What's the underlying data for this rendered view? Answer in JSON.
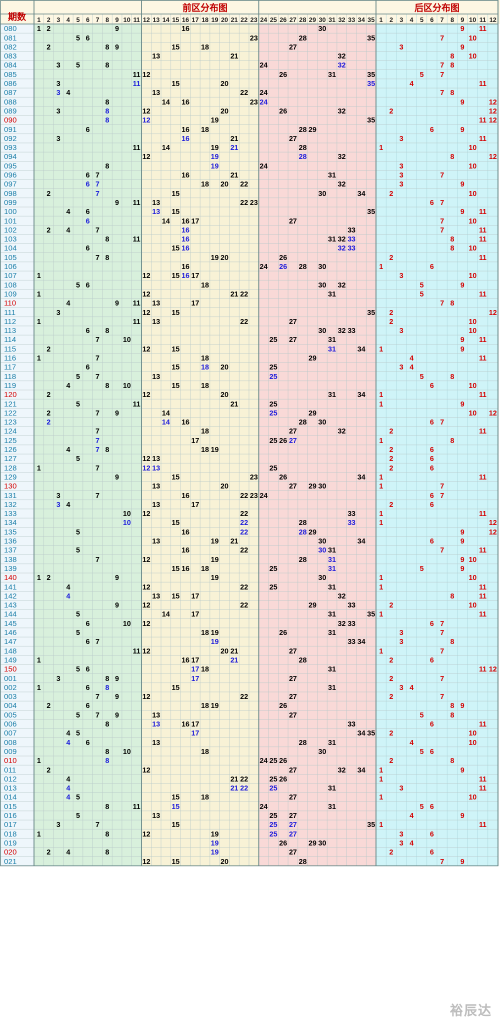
{
  "header": {
    "period_label": "期数",
    "front_title": "前区分布图",
    "back_title": "后区分布图"
  },
  "watermark": "裕辰达",
  "colors": {
    "period_normal": "#1a7ea8",
    "period_highlight": "#d40000",
    "front_ball": "#000000",
    "front_repeat": "#1a1adb",
    "back_ball": "#d40000",
    "zone1_bg": "#d8f0dc",
    "zone2_bg": "#f8f2d6",
    "zone3_bg": "#f9d9d7",
    "back_bg": "#cff4f8"
  },
  "front_columns": [
    "1",
    "2",
    "3",
    "4",
    "5",
    "6",
    "7",
    "8",
    "9",
    "10",
    "11",
    "12",
    "13",
    "14",
    "15",
    "16",
    "17",
    "18",
    "19",
    "20",
    "21",
    "22",
    "23",
    "24",
    "25",
    "26",
    "27",
    "28",
    "29",
    "30",
    "31",
    "32",
    "33",
    "34",
    "35"
  ],
  "back_columns": [
    "1",
    "2",
    "3",
    "4",
    "5",
    "6",
    "7",
    "8",
    "9",
    "10",
    "11",
    "12"
  ],
  "draws": [
    {
      "p": "080",
      "f": [
        1,
        2,
        9,
        16,
        30
      ],
      "b": [
        9,
        11
      ]
    },
    {
      "p": "081",
      "f": [
        5,
        6,
        23,
        28,
        35
      ],
      "b": [
        7,
        10
      ]
    },
    {
      "p": "082",
      "f": [
        2,
        8,
        9,
        15,
        18,
        27
      ],
      "b": [
        3,
        9
      ]
    },
    {
      "p": "083",
      "f": [
        13,
        21,
        32
      ],
      "b": [
        8,
        10
      ]
    },
    {
      "p": "084",
      "f": [
        3,
        5,
        8,
        24,
        32
      ],
      "b": [
        7,
        8
      ]
    },
    {
      "p": "085",
      "f": [
        11,
        12,
        26,
        31,
        35
      ],
      "b": [
        5,
        7
      ]
    },
    {
      "p": "086",
      "f": [
        3,
        11,
        15,
        20,
        35
      ],
      "b": [
        4,
        11
      ]
    },
    {
      "p": "087",
      "f": [
        3,
        4,
        13,
        22,
        24
      ],
      "b": [
        7,
        8
      ]
    },
    {
      "p": "088",
      "f": [
        8,
        14,
        16,
        23,
        24
      ],
      "b": [
        9,
        12
      ]
    },
    {
      "p": "089",
      "f": [
        3,
        8,
        12,
        20,
        26,
        32
      ],
      "b": [
        2,
        12
      ]
    },
    {
      "p": "090",
      "f": [
        8,
        12,
        19,
        35
      ],
      "b": [
        11,
        12
      ]
    },
    {
      "p": "091",
      "f": [
        6,
        16,
        18,
        28,
        29
      ],
      "b": [
        6,
        9
      ]
    },
    {
      "p": "092",
      "f": [
        3,
        16,
        21,
        27
      ],
      "b": [
        3,
        11
      ]
    },
    {
      "p": "093",
      "f": [
        11,
        14,
        19,
        21,
        28
      ],
      "b": [
        1,
        10
      ]
    },
    {
      "p": "094",
      "f": [
        12,
        19,
        28,
        32
      ],
      "b": [
        8,
        12
      ]
    },
    {
      "p": "095",
      "f": [
        8,
        19,
        24
      ],
      "b": [
        3,
        10
      ]
    },
    {
      "p": "096",
      "f": [
        6,
        7,
        16,
        21,
        31
      ],
      "b": [
        3,
        7
      ]
    },
    {
      "p": "097",
      "f": [
        6,
        7,
        18,
        20,
        22,
        32
      ],
      "b": [
        3,
        9
      ]
    },
    {
      "p": "098",
      "f": [
        2,
        7,
        15,
        30,
        34
      ],
      "b": [
        2,
        10
      ]
    },
    {
      "p": "099",
      "f": [
        9,
        11,
        13,
        22,
        23
      ],
      "b": [
        6,
        7
      ]
    },
    {
      "p": "100",
      "f": [
        4,
        6,
        13,
        15,
        35
      ],
      "b": [
        9,
        11
      ]
    },
    {
      "p": "101",
      "f": [
        6,
        14,
        16,
        17,
        27
      ],
      "b": [
        7,
        10
      ]
    },
    {
      "p": "102",
      "f": [
        2,
        4,
        7,
        16,
        33
      ],
      "b": [
        7,
        11
      ]
    },
    {
      "p": "103",
      "f": [
        8,
        11,
        16,
        31,
        32,
        33
      ],
      "b": [
        8,
        11
      ]
    },
    {
      "p": "104",
      "f": [
        6,
        15,
        16,
        32,
        33
      ],
      "b": [
        8,
        10
      ]
    },
    {
      "p": "105",
      "f": [
        7,
        8,
        19,
        20,
        26
      ],
      "b": [
        2,
        11
      ]
    },
    {
      "p": "106",
      "f": [
        16,
        24,
        26,
        28,
        30
      ],
      "b": [
        1,
        6
      ]
    },
    {
      "p": "107",
      "f": [
        1,
        12,
        15,
        16,
        17
      ],
      "b": [
        3,
        10
      ]
    },
    {
      "p": "108",
      "f": [
        5,
        6,
        18,
        30,
        32
      ],
      "b": [
        5,
        9
      ]
    },
    {
      "p": "109",
      "f": [
        1,
        12,
        21,
        22,
        31
      ],
      "b": [
        5,
        11
      ]
    },
    {
      "p": "110",
      "f": [
        4,
        9,
        11,
        13,
        17
      ],
      "b": [
        7,
        8
      ]
    },
    {
      "p": "111",
      "f": [
        3,
        12,
        15,
        35
      ],
      "b": [
        2,
        12
      ]
    },
    {
      "p": "112",
      "f": [
        1,
        11,
        13,
        22,
        27
      ],
      "b": [
        2,
        10
      ]
    },
    {
      "p": "113",
      "f": [
        6,
        8,
        30,
        32,
        33
      ],
      "b": [
        3,
        10
      ]
    },
    {
      "p": "114",
      "f": [
        7,
        10,
        25,
        27,
        31
      ],
      "b": [
        9,
        11
      ]
    },
    {
      "p": "115",
      "f": [
        2,
        12,
        15,
        31,
        34
      ],
      "b": [
        1,
        9
      ]
    },
    {
      "p": "116",
      "f": [
        1,
        7,
        18,
        29
      ],
      "b": [
        4,
        11
      ]
    },
    {
      "p": "117",
      "f": [
        6,
        15,
        18,
        20,
        25
      ],
      "b": [
        3,
        4
      ]
    },
    {
      "p": "118",
      "f": [
        5,
        7,
        13,
        25
      ],
      "b": [
        5,
        8
      ]
    },
    {
      "p": "119",
      "f": [
        4,
        8,
        10,
        15,
        18
      ],
      "b": [
        6,
        10
      ]
    },
    {
      "p": "120",
      "f": [
        2,
        12,
        20,
        31,
        34
      ],
      "b": [
        1,
        11
      ]
    },
    {
      "p": "121",
      "f": [
        5,
        11,
        21,
        25
      ],
      "b": [
        1,
        9
      ]
    },
    {
      "p": "122",
      "f": [
        2,
        7,
        9,
        14,
        25,
        29
      ],
      "b": [
        10,
        12
      ]
    },
    {
      "p": "123",
      "f": [
        2,
        14,
        16,
        28,
        30
      ],
      "b": [
        6,
        7
      ]
    },
    {
      "p": "124",
      "f": [
        7,
        18,
        27,
        32
      ],
      "b": [
        2,
        11
      ]
    },
    {
      "p": "125",
      "f": [
        7,
        17,
        25,
        26,
        27
      ],
      "b": [
        1,
        8
      ]
    },
    {
      "p": "126",
      "f": [
        4,
        7,
        8,
        18,
        19
      ],
      "b": [
        2,
        6
      ]
    },
    {
      "p": "127",
      "f": [
        5,
        12,
        13
      ],
      "b": [
        2,
        6
      ]
    },
    {
      "p": "128",
      "f": [
        1,
        7,
        12,
        13,
        25
      ],
      "b": [
        2,
        6
      ]
    },
    {
      "p": "129",
      "f": [
        9,
        15,
        23,
        26,
        34
      ],
      "b": [
        1,
        11
      ]
    },
    {
      "p": "130",
      "f": [
        13,
        20,
        27,
        29,
        30
      ],
      "b": [
        1,
        7
      ]
    },
    {
      "p": "131",
      "f": [
        3,
        7,
        16,
        22,
        23,
        24
      ],
      "b": [
        6,
        7
      ]
    },
    {
      "p": "132",
      "f": [
        3,
        4,
        13,
        17
      ],
      "b": [
        2,
        6
      ]
    },
    {
      "p": "133",
      "f": [
        10,
        12,
        22,
        33
      ],
      "b": [
        1,
        11
      ]
    },
    {
      "p": "134",
      "f": [
        10,
        15,
        22,
        28,
        33
      ],
      "b": [
        1,
        12
      ]
    },
    {
      "p": "135",
      "f": [
        5,
        16,
        22,
        28,
        29
      ],
      "b": [
        9,
        12
      ]
    },
    {
      "p": "136",
      "f": [
        13,
        19,
        21,
        30,
        34
      ],
      "b": [
        6,
        9
      ]
    },
    {
      "p": "137",
      "f": [
        5,
        16,
        22,
        30,
        31
      ],
      "b": [
        7,
        11
      ]
    },
    {
      "p": "138",
      "f": [
        7,
        12,
        19,
        28,
        31
      ],
      "b": [
        9,
        10
      ]
    },
    {
      "p": "139",
      "f": [
        15,
        16,
        18,
        25,
        31
      ],
      "b": [
        5,
        9
      ]
    },
    {
      "p": "140",
      "f": [
        1,
        2,
        9,
        19,
        30
      ],
      "b": [
        1,
        10
      ]
    },
    {
      "p": "141",
      "f": [
        4,
        12,
        22,
        25,
        31
      ],
      "b": [
        1,
        11
      ]
    },
    {
      "p": "142",
      "f": [
        4,
        13,
        15,
        17,
        32
      ],
      "b": [
        8,
        11
      ]
    },
    {
      "p": "143",
      "f": [
        9,
        12,
        22,
        29,
        33
      ],
      "b": [
        2,
        10
      ]
    },
    {
      "p": "144",
      "f": [
        5,
        14,
        17,
        31,
        35
      ],
      "b": [
        1,
        11
      ]
    },
    {
      "p": "145",
      "f": [
        6,
        10,
        12,
        32,
        33
      ],
      "b": [
        6,
        7
      ]
    },
    {
      "p": "146",
      "f": [
        5,
        18,
        19,
        26,
        31
      ],
      "b": [
        3,
        7
      ]
    },
    {
      "p": "147",
      "f": [
        6,
        7,
        19,
        33,
        34
      ],
      "b": [
        3,
        8
      ]
    },
    {
      "p": "148",
      "f": [
        11,
        12,
        20,
        21,
        27
      ],
      "b": [
        1,
        7
      ]
    },
    {
      "p": "149",
      "f": [
        1,
        16,
        17,
        21,
        28
      ],
      "b": [
        2,
        6
      ]
    },
    {
      "p": "150",
      "f": [
        5,
        6,
        17,
        18,
        31
      ],
      "b": [
        11,
        12
      ]
    },
    {
      "p": "001",
      "f": [
        3,
        8,
        9,
        17,
        27
      ],
      "b": [
        2,
        7
      ]
    },
    {
      "p": "002",
      "f": [
        1,
        6,
        8,
        15,
        31
      ],
      "b": [
        3,
        4
      ]
    },
    {
      "p": "003",
      "f": [
        7,
        9,
        12,
        22,
        27
      ],
      "b": [
        2,
        7
      ]
    },
    {
      "p": "004",
      "f": [
        2,
        6,
        18,
        19,
        26
      ],
      "b": [
        8,
        9
      ]
    },
    {
      "p": "005",
      "f": [
        5,
        7,
        9,
        13,
        27
      ],
      "b": [
        5,
        8
      ]
    },
    {
      "p": "006",
      "f": [
        8,
        13,
        16,
        17,
        33
      ],
      "b": [
        6,
        11
      ]
    },
    {
      "p": "007",
      "f": [
        4,
        5,
        17,
        34,
        35
      ],
      "b": [
        2,
        10
      ]
    },
    {
      "p": "008",
      "f": [
        4,
        6,
        13,
        28,
        31
      ],
      "b": [
        4,
        10
      ]
    },
    {
      "p": "009",
      "f": [
        8,
        10,
        18,
        30
      ],
      "b": [
        5,
        6
      ]
    },
    {
      "p": "010",
      "f": [
        1,
        8,
        24,
        25,
        26
      ],
      "b": [
        2,
        8
      ]
    },
    {
      "p": "011",
      "f": [
        2,
        12,
        27,
        32,
        34
      ],
      "b": [
        1,
        9
      ]
    },
    {
      "p": "012",
      "f": [
        4,
        21,
        22,
        25,
        26
      ],
      "b": [
        1,
        11
      ]
    },
    {
      "p": "013",
      "f": [
        4,
        21,
        22,
        25,
        31
      ],
      "b": [
        3,
        11
      ]
    },
    {
      "p": "014",
      "f": [
        4,
        5,
        15,
        18,
        27
      ],
      "b": [
        1,
        10
      ]
    },
    {
      "p": "015",
      "f": [
        8,
        11,
        15,
        24,
        31
      ],
      "b": [
        5,
        6
      ]
    },
    {
      "p": "016",
      "f": [
        5,
        13,
        25,
        27
      ],
      "b": [
        4,
        9
      ]
    },
    {
      "p": "017",
      "f": [
        3,
        7,
        15,
        25,
        27,
        35
      ],
      "b": [
        1,
        11
      ]
    },
    {
      "p": "018",
      "f": [
        1,
        8,
        12,
        19,
        25,
        27
      ],
      "b": [
        3,
        6
      ]
    },
    {
      "p": "019",
      "f": [
        19,
        26,
        29,
        30
      ],
      "b": [
        3,
        4
      ]
    },
    {
      "p": "020",
      "f": [
        2,
        4,
        8,
        19,
        27
      ],
      "b": [
        2,
        6
      ]
    },
    {
      "p": "021",
      "f": [
        12,
        15,
        20,
        28
      ],
      "b": [
        7,
        9
      ]
    }
  ]
}
